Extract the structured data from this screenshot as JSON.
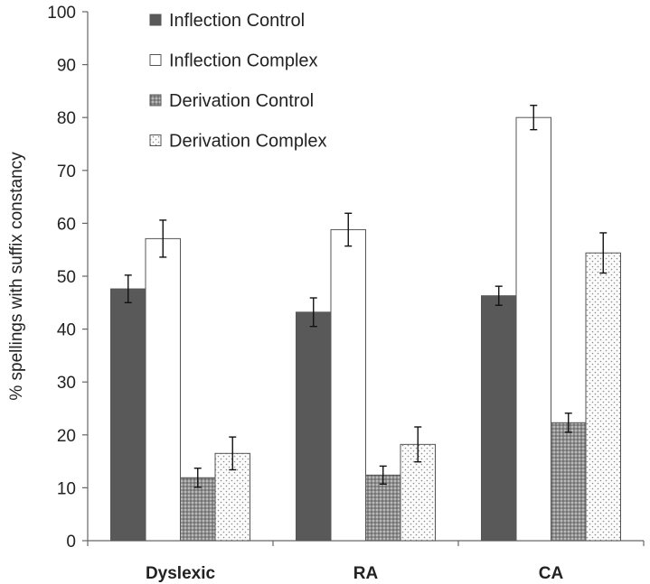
{
  "chart_data": {
    "type": "bar",
    "title": "",
    "xlabel": "",
    "ylabel": "% spellings with suffix constancy",
    "ylim": [
      0,
      100
    ],
    "yticks": [
      0,
      10,
      20,
      30,
      40,
      50,
      60,
      70,
      80,
      90,
      100
    ],
    "grid": false,
    "legend_position": "top-left",
    "categories": [
      "Dyslexic",
      "RA",
      "CA"
    ],
    "series": [
      {
        "name": "Inflection Control",
        "pattern": "solid-dark",
        "color": "#595959",
        "values": [
          47.6,
          43.2,
          46.3
        ],
        "error": [
          2.6,
          2.7,
          1.8
        ]
      },
      {
        "name": "Inflection Complex",
        "pattern": "white",
        "color": "#ffffff",
        "values": [
          57.1,
          58.8,
          80.0
        ],
        "error": [
          3.5,
          3.1,
          2.3
        ]
      },
      {
        "name": "Derivation Control",
        "pattern": "dense-dots-gray",
        "color": "#9a9a9a",
        "values": [
          11.9,
          12.4,
          22.3
        ],
        "error": [
          1.8,
          1.7,
          1.8
        ]
      },
      {
        "name": "Derivation Complex",
        "pattern": "sparse-dots-light",
        "color": "#f0f0f0",
        "values": [
          16.5,
          18.2,
          54.4
        ],
        "error": [
          3.1,
          3.3,
          3.8
        ]
      }
    ]
  }
}
